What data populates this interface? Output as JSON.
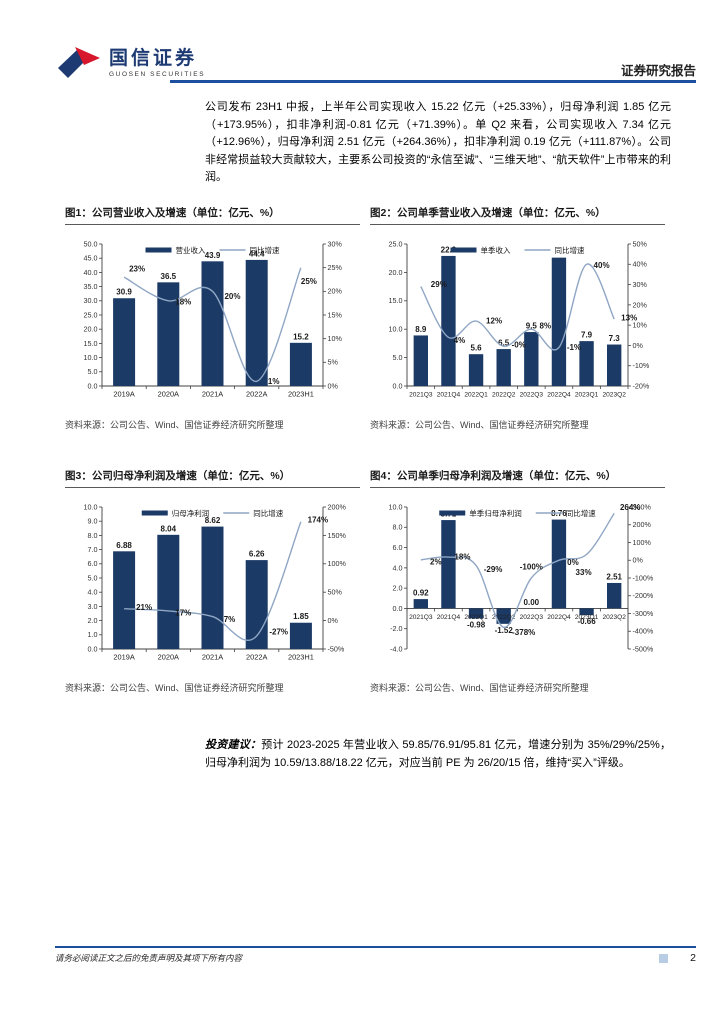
{
  "header": {
    "brand": "国信证券",
    "brand_sub": "GUOSEN SECURITIES",
    "report_type": "证券研究报告"
  },
  "body": {
    "paragraph1": "公司发布 23H1 中报，上半年公司实现收入 15.22 亿元（+25.33%），归母净利润 1.85 亿元（+173.95%），扣非净利润-0.81 亿元（+71.39%）。单 Q2 来看，公司实现收入 7.34 亿元（+12.96%），归母净利润 2.51 亿元（+264.36%），扣非净利润 0.19 亿元（+111.87%）。公司非经常损益较大贡献较大，主要系公司投资的“永信至诚”、“三维天地”、“航天软件”上市带来的利润。",
    "advice_label": "投资建议：",
    "advice_text": "预计 2023-2025 年营业收入 59.85/76.91/95.81 亿元，增速分别为 35%/29%/25%，归母净利润为 10.59/13.88/18.22 亿元，对应当前 PE 为 26/20/15 倍，维持“买入”评级。"
  },
  "footer": {
    "disclaimer": "请务必阅读正文之后的免责声明及其项下所有内容",
    "page": "2"
  },
  "colors": {
    "accent": "#1e4f9e",
    "bar": "#1b3a66",
    "line": "#8fa6c4",
    "axis": "#404040",
    "label": "#1a1a1a"
  },
  "chart_data": [
    {
      "type": "bar",
      "title": "图1：公司营业收入及增速（单位：亿元、%）",
      "source": "资料来源：公司公告、Wind、国信证券经济研究所整理",
      "categories": [
        "2019A",
        "2020A",
        "2021A",
        "2022A",
        "2023H1"
      ],
      "series": [
        {
          "name": "营业收入",
          "type": "bar",
          "values": [
            30.9,
            36.5,
            43.9,
            44.4,
            15.2
          ],
          "labels": [
            "30.9",
            "36.5",
            "43.9",
            "44.4",
            "15.2"
          ]
        },
        {
          "name": "同比增速",
          "type": "line",
          "values": [
            23,
            18,
            20,
            1,
            25
          ],
          "labels": [
            "23%",
            "18%",
            "20%",
            "1%",
            "25%"
          ],
          "label_offsets": [
            [
              13,
              -8
            ],
            [
              15,
              1
            ],
            [
              20,
              5
            ],
            [
              17,
              0
            ],
            [
              8,
              14
            ]
          ]
        }
      ],
      "left_axis": {
        "min": 0,
        "max": 50,
        "step": 5
      },
      "right_axis": {
        "min": 0,
        "max": 30,
        "step": 5
      },
      "legend_position": "top-center",
      "grid": false
    },
    {
      "type": "bar",
      "title": "图2：公司单季营业收入及增速（单位：亿元、%）",
      "source": "资料来源：公司公告、Wind、国信证券经济研究所整理",
      "categories": [
        "2021Q3",
        "2021Q4",
        "2022Q1",
        "2022Q2",
        "2022Q3",
        "2022Q4",
        "2023Q1",
        "2023Q2"
      ],
      "series": [
        {
          "name": "单季收入",
          "type": "bar",
          "values": [
            8.9,
            22.9,
            5.6,
            6.5,
            9.5,
            22.6,
            7.9,
            7.3
          ],
          "labels": [
            "8.9",
            "22.9",
            "5.6",
            "6.5",
            "9.5",
            "",
            "7.9",
            "7.3"
          ]
        },
        {
          "name": "同比增速",
          "type": "line",
          "values": [
            29,
            4,
            12,
            -0.4,
            8,
            -1,
            40,
            13
          ],
          "labels": [
            "29%",
            "4%",
            "12%",
            "-0%",
            "8%",
            "-1%",
            "40%",
            "13%"
          ],
          "label_offsets": [
            [
              18,
              -2
            ],
            [
              11,
              3
            ],
            [
              18,
              0
            ],
            [
              15,
              -1
            ],
            [
              14,
              -3
            ],
            [
              15,
              0
            ],
            [
              15,
              1
            ],
            [
              15,
              -1
            ]
          ]
        }
      ],
      "left_axis": {
        "min": 0,
        "max": 25,
        "step": 5
      },
      "right_axis": {
        "min": -20,
        "max": 50,
        "step": 10
      },
      "legend_position": "top-center",
      "grid": false
    },
    {
      "type": "bar",
      "title": "图3：公司归母净利润及增速（单位：亿元、%）",
      "source": "资料来源：公司公告、Wind、国信证券经济研究所整理",
      "categories": [
        "2019A",
        "2020A",
        "2021A",
        "2022A",
        "2023H1"
      ],
      "series": [
        {
          "name": "归母净利润",
          "type": "bar",
          "values": [
            6.88,
            8.04,
            8.62,
            6.26,
            1.85
          ],
          "labels": [
            "6.88",
            "8.04",
            "8.62",
            "6.26",
            "1.85"
          ]
        },
        {
          "name": "同比增速",
          "type": "line",
          "values": [
            21,
            17,
            7,
            -27,
            174
          ],
          "labels": [
            "21%",
            "17%",
            "7%",
            "-27%",
            "174%"
          ],
          "label_offsets": [
            [
              20,
              -1
            ],
            [
              15,
              2
            ],
            [
              17,
              3
            ],
            [
              22,
              -4
            ],
            [
              17,
              -2
            ]
          ]
        }
      ],
      "left_axis": {
        "min": 0,
        "max": 10,
        "step": 1
      },
      "right_axis": {
        "min": -50,
        "max": 200,
        "step": 50
      },
      "legend_position": "top-center",
      "grid": false
    },
    {
      "type": "bar",
      "title": "图4：公司单季归母净利润及增速（单位：亿元、%）",
      "source": "资料来源：公司公告、Wind、国信证券经济研究所整理",
      "categories": [
        "2021Q3",
        "2021Q4",
        "2022Q1",
        "2022Q2",
        "2022Q3",
        "2022Q4",
        "2023Q1",
        "2023Q2"
      ],
      "series": [
        {
          "name": "单季归母净利润",
          "type": "bar",
          "values": [
            0.92,
            8.71,
            -0.98,
            -1.52,
            0.0,
            8.76,
            -0.66,
            2.51
          ],
          "labels": [
            "0.92",
            "8.71",
            "-0.98",
            "-1.52",
            "0.00",
            "8.76",
            "-0.66",
            "2.51"
          ]
        },
        {
          "name": "同比增速",
          "type": "line",
          "values": [
            2,
            18,
            -29,
            -378,
            -100,
            0,
            33,
            264
          ],
          "labels": [
            "2%",
            "18%",
            "-29%",
            "-378%",
            "-100%",
            "0%",
            "33%",
            "264%"
          ],
          "label_offsets": [
            [
              15,
              2
            ],
            [
              14,
              0
            ],
            [
              17,
              4
            ],
            [
              20,
              5
            ],
            [
              0,
              -11
            ],
            [
              14,
              2
            ],
            [
              -3,
              18
            ],
            [
              16,
              -6
            ]
          ]
        }
      ],
      "left_axis": {
        "min": -4,
        "max": 10,
        "step": 2
      },
      "right_axis": {
        "min": -500,
        "max": 300,
        "step": 100
      },
      "legend_position": "top-center",
      "grid": false
    }
  ]
}
